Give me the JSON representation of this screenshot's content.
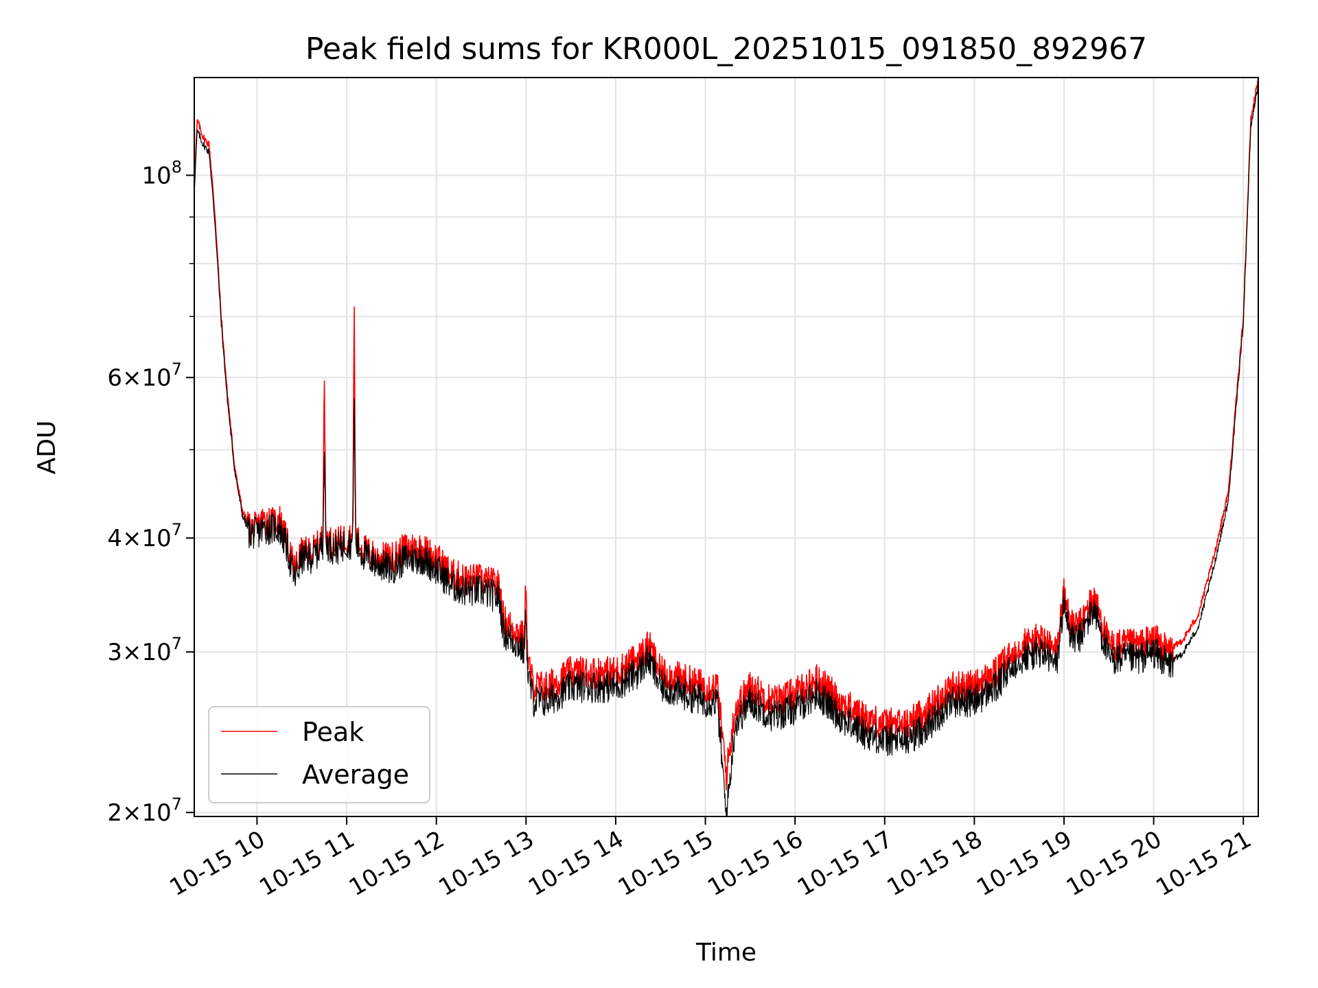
{
  "chart_data": {
    "type": "line",
    "title": "Peak field sums for KR000L_20251015_091850_892967",
    "xlabel": "Time",
    "ylabel": "ADU",
    "yscale": "log",
    "ylim": [
      19800000,
      128000000
    ],
    "xlim": [
      "2025-10-15 09:18",
      "2025-10-15 21:10"
    ],
    "grid": true,
    "legend_position": "lower-left",
    "x_tick_labels": [
      "10-15 10",
      "10-15 11",
      "10-15 12",
      "10-15 13",
      "10-15 14",
      "10-15 15",
      "10-15 16",
      "10-15 17",
      "10-15 18",
      "10-15 19",
      "10-15 20",
      "10-15 21"
    ],
    "y_tick_labels": [
      {
        "value": 20000000,
        "mantissa": "2",
        "exponent": "7"
      },
      {
        "value": 30000000,
        "mantissa": "3",
        "exponent": "7"
      },
      {
        "value": 40000000,
        "mantissa": "4",
        "exponent": "7"
      },
      {
        "value": 60000000,
        "mantissa": "6",
        "exponent": "7"
      },
      {
        "value": 100000000,
        "mantissa": "",
        "exponent": "8"
      }
    ],
    "y_minor_ticks": [
      50000000,
      70000000,
      80000000,
      90000000
    ],
    "series": [
      {
        "name": "Peak",
        "color": "#ff0000",
        "x": [
          "2025-10-15 09:18",
          "2025-10-15 09:20",
          "2025-10-15 09:24",
          "2025-10-15 09:28",
          "2025-10-15 09:32",
          "2025-10-15 09:36",
          "2025-10-15 09:40",
          "2025-10-15 09:45",
          "2025-10-15 09:50",
          "2025-10-15 09:55",
          "2025-10-15 10:00",
          "2025-10-15 10:05",
          "2025-10-15 10:10",
          "2025-10-15 10:15",
          "2025-10-15 10:20",
          "2025-10-15 10:25",
          "2025-10-15 10:30",
          "2025-10-15 10:35",
          "2025-10-15 10:40",
          "2025-10-15 10:44",
          "2025-10-15 10:45",
          "2025-10-15 10:46",
          "2025-10-15 10:50",
          "2025-10-15 10:55",
          "2025-10-15 11:00",
          "2025-10-15 11:04",
          "2025-10-15 11:05",
          "2025-10-15 11:06",
          "2025-10-15 11:10",
          "2025-10-15 11:20",
          "2025-10-15 11:30",
          "2025-10-15 11:40",
          "2025-10-15 11:50",
          "2025-10-15 12:00",
          "2025-10-15 12:10",
          "2025-10-15 12:20",
          "2025-10-15 12:30",
          "2025-10-15 12:40",
          "2025-10-15 12:42",
          "2025-10-15 12:45",
          "2025-10-15 12:50",
          "2025-10-15 12:55",
          "2025-10-15 12:59",
          "2025-10-15 13:00",
          "2025-10-15 13:01",
          "2025-10-15 13:05",
          "2025-10-15 13:15",
          "2025-10-15 13:30",
          "2025-10-15 13:45",
          "2025-10-15 14:00",
          "2025-10-15 14:15",
          "2025-10-15 14:22",
          "2025-10-15 14:30",
          "2025-10-15 14:45",
          "2025-10-15 15:00",
          "2025-10-15 15:08",
          "2025-10-15 15:14",
          "2025-10-15 15:20",
          "2025-10-15 15:30",
          "2025-10-15 15:45",
          "2025-10-15 16:00",
          "2025-10-15 16:15",
          "2025-10-15 16:30",
          "2025-10-15 16:45",
          "2025-10-15 17:00",
          "2025-10-15 17:15",
          "2025-10-15 17:30",
          "2025-10-15 17:45",
          "2025-10-15 18:00",
          "2025-10-15 18:15",
          "2025-10-15 18:30",
          "2025-10-15 18:45",
          "2025-10-15 18:55",
          "2025-10-15 19:00",
          "2025-10-15 19:05",
          "2025-10-15 19:10",
          "2025-10-15 19:20",
          "2025-10-15 19:30",
          "2025-10-15 19:40",
          "2025-10-15 19:50",
          "2025-10-15 20:00",
          "2025-10-15 20:10",
          "2025-10-15 20:20",
          "2025-10-15 20:30",
          "2025-10-15 20:40",
          "2025-10-15 20:50",
          "2025-10-15 21:00",
          "2025-10-15 21:05",
          "2025-10-15 21:10"
        ],
        "values": [
          98000000,
          115000000,
          110000000,
          108000000,
          90000000,
          70000000,
          58000000,
          48000000,
          43000000,
          41000000,
          41000000,
          42000000,
          41500000,
          42000000,
          39500000,
          37000000,
          38500000,
          38500000,
          39000000,
          40000000,
          62000000,
          40000000,
          39500000,
          39500000,
          40000000,
          40000000,
          73000000,
          40000000,
          39000000,
          38000000,
          38000000,
          39000000,
          39000000,
          38000000,
          36500000,
          36000000,
          36000000,
          35500000,
          35500000,
          32500000,
          32000000,
          31500000,
          31000000,
          37000000,
          29500000,
          27500000,
          27500000,
          28500000,
          28500000,
          28500000,
          29500000,
          30500000,
          28500000,
          28000000,
          27500000,
          27500000,
          22000000,
          26000000,
          27500000,
          26500000,
          27000000,
          28000000,
          26500000,
          25500000,
          25000000,
          25000000,
          26000000,
          27500000,
          27500000,
          28500000,
          30500000,
          31000000,
          30000000,
          35000000,
          32000000,
          32000000,
          34500000,
          30500000,
          30500000,
          30500000,
          31000000,
          30000000,
          31000000,
          33000000,
          38000000,
          45000000,
          70000000,
          115000000,
          128000000
        ]
      },
      {
        "name": "Average",
        "color": "#000000",
        "x": [
          "2025-10-15 09:18",
          "2025-10-15 09:20",
          "2025-10-15 09:24",
          "2025-10-15 09:28",
          "2025-10-15 09:32",
          "2025-10-15 09:36",
          "2025-10-15 09:40",
          "2025-10-15 09:45",
          "2025-10-15 09:50",
          "2025-10-15 09:55",
          "2025-10-15 10:00",
          "2025-10-15 10:05",
          "2025-10-15 10:10",
          "2025-10-15 10:15",
          "2025-10-15 10:20",
          "2025-10-15 10:25",
          "2025-10-15 10:30",
          "2025-10-15 10:35",
          "2025-10-15 10:40",
          "2025-10-15 10:44",
          "2025-10-15 10:45",
          "2025-10-15 10:46",
          "2025-10-15 10:50",
          "2025-10-15 10:55",
          "2025-10-15 11:00",
          "2025-10-15 11:04",
          "2025-10-15 11:05",
          "2025-10-15 11:06",
          "2025-10-15 11:10",
          "2025-10-15 11:20",
          "2025-10-15 11:30",
          "2025-10-15 11:40",
          "2025-10-15 11:50",
          "2025-10-15 12:00",
          "2025-10-15 12:10",
          "2025-10-15 12:20",
          "2025-10-15 12:30",
          "2025-10-15 12:40",
          "2025-10-15 12:42",
          "2025-10-15 12:45",
          "2025-10-15 12:50",
          "2025-10-15 12:55",
          "2025-10-15 12:59",
          "2025-10-15 13:00",
          "2025-10-15 13:01",
          "2025-10-15 13:05",
          "2025-10-15 13:15",
          "2025-10-15 13:30",
          "2025-10-15 13:45",
          "2025-10-15 14:00",
          "2025-10-15 14:15",
          "2025-10-15 14:22",
          "2025-10-15 14:30",
          "2025-10-15 14:45",
          "2025-10-15 15:00",
          "2025-10-15 15:08",
          "2025-10-15 15:14",
          "2025-10-15 15:20",
          "2025-10-15 15:30",
          "2025-10-15 15:45",
          "2025-10-15 16:00",
          "2025-10-15 16:15",
          "2025-10-15 16:30",
          "2025-10-15 16:45",
          "2025-10-15 17:00",
          "2025-10-15 17:15",
          "2025-10-15 17:30",
          "2025-10-15 17:45",
          "2025-10-15 18:00",
          "2025-10-15 18:15",
          "2025-10-15 18:30",
          "2025-10-15 18:45",
          "2025-10-15 18:55",
          "2025-10-15 19:00",
          "2025-10-15 19:05",
          "2025-10-15 19:10",
          "2025-10-15 19:20",
          "2025-10-15 19:30",
          "2025-10-15 19:40",
          "2025-10-15 19:50",
          "2025-10-15 20:00",
          "2025-10-15 20:10",
          "2025-10-15 20:20",
          "2025-10-15 20:30",
          "2025-10-15 20:40",
          "2025-10-15 20:50",
          "2025-10-15 21:00",
          "2025-10-15 21:05",
          "2025-10-15 21:10"
        ],
        "values": [
          96000000,
          112000000,
          108000000,
          106000000,
          88000000,
          69000000,
          57000000,
          47500000,
          42500000,
          40500000,
          40500000,
          41000000,
          41000000,
          41000000,
          39000000,
          36000000,
          38000000,
          38000000,
          38500000,
          39500000,
          51000000,
          39500000,
          39000000,
          39000000,
          39500000,
          39500000,
          57000000,
          39500000,
          38500000,
          37500000,
          37000000,
          38000000,
          38000000,
          37000000,
          35500000,
          35000000,
          35000000,
          34500000,
          34500000,
          31500000,
          31000000,
          30500000,
          30000000,
          34000000,
          28500000,
          26500000,
          26500000,
          27500000,
          27500000,
          27500000,
          28500000,
          29500000,
          27500000,
          27000000,
          26500000,
          26500000,
          19800000,
          25000000,
          26500000,
          25500000,
          26000000,
          27000000,
          25500000,
          24500000,
          24000000,
          24000000,
          25000000,
          26500000,
          26500000,
          27500000,
          29500000,
          30000000,
          29000000,
          34000000,
          31000000,
          31000000,
          33500000,
          29500000,
          29500000,
          29500000,
          30000000,
          29000000,
          30000000,
          32000000,
          37000000,
          44000000,
          69000000,
          113000000,
          126000000
        ]
      }
    ]
  }
}
